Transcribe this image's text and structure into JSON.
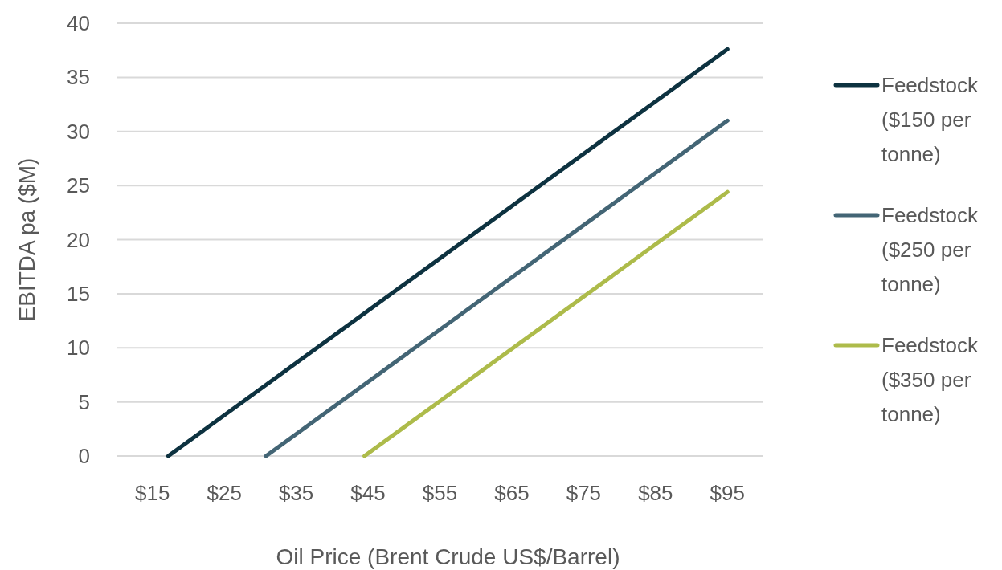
{
  "chart_data": {
    "type": "line",
    "xlabel": "Oil Price (Brent Crude US$/Barrel)",
    "ylabel": "EBITDA pa ($M)",
    "xlim": [
      10,
      100
    ],
    "xticks": [
      {
        "value": 15,
        "label": "$15"
      },
      {
        "value": 25,
        "label": "$25"
      },
      {
        "value": 35,
        "label": "$35"
      },
      {
        "value": 45,
        "label": "$45"
      },
      {
        "value": 55,
        "label": "$55"
      },
      {
        "value": 65,
        "label": "$65"
      },
      {
        "value": 75,
        "label": "$75"
      },
      {
        "value": 85,
        "label": "$85"
      },
      {
        "value": 95,
        "label": "$95"
      }
    ],
    "ylim": [
      0,
      40
    ],
    "yticks": [
      0,
      5,
      10,
      15,
      20,
      25,
      30,
      35,
      40
    ],
    "grid": "y",
    "legend": "right",
    "marker": "none",
    "line_style": "solid",
    "series": [
      {
        "name": "Feedstock ($150 per tonne)",
        "color": "#0d3240",
        "x": [
          17.2,
          95
        ],
        "values": [
          0,
          37.6
        ]
      },
      {
        "name": "Feedstock ($250 per tonne)",
        "color": "#436575",
        "x": [
          30.8,
          95
        ],
        "values": [
          0,
          31.0
        ]
      },
      {
        "name": "Feedstock ($350 per tonne)",
        "color": "#adbb4a",
        "x": [
          44.5,
          95
        ],
        "values": [
          0,
          24.4
        ]
      }
    ]
  }
}
